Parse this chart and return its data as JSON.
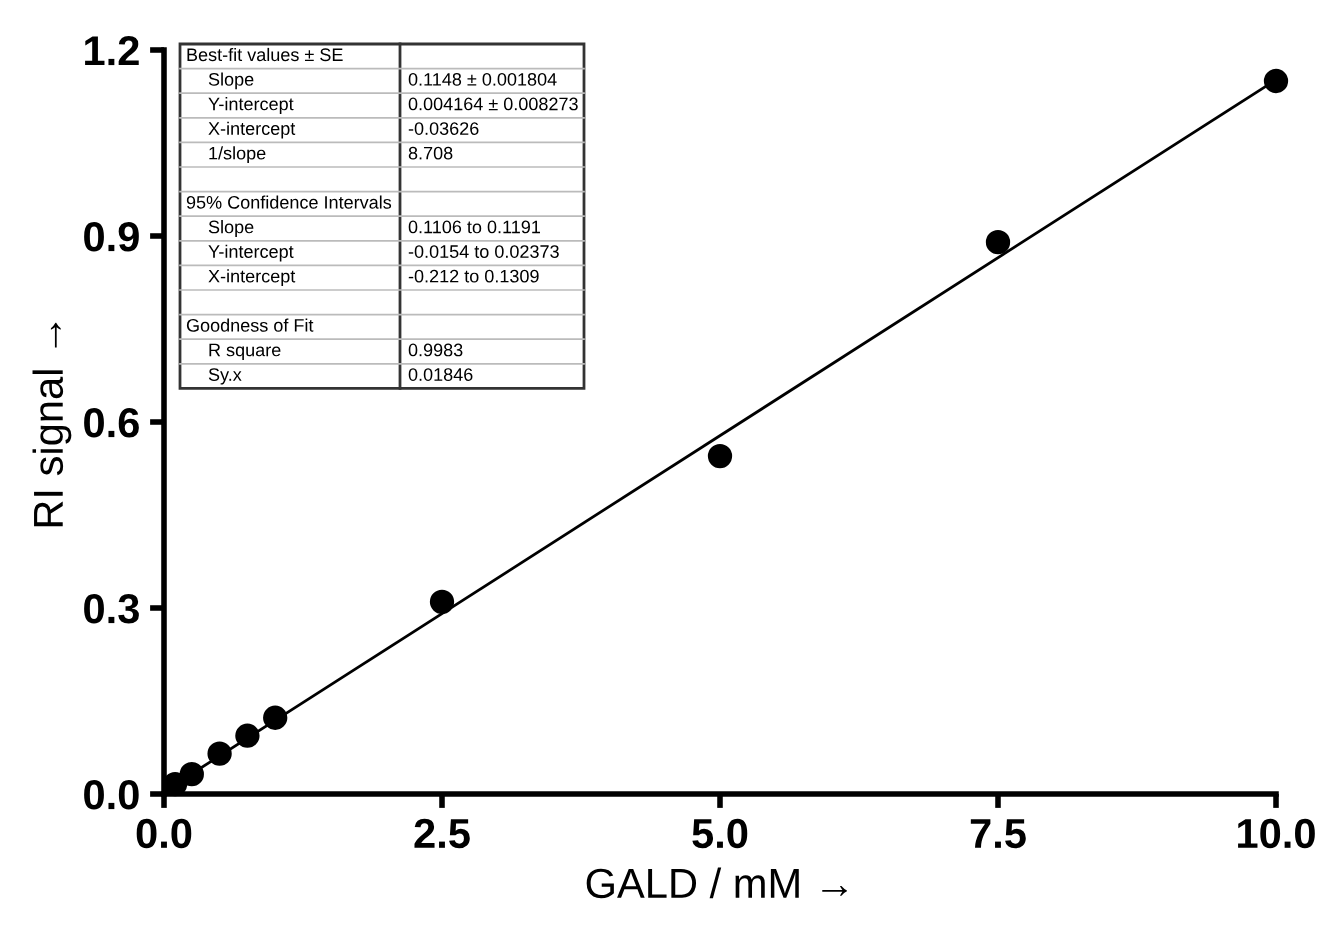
{
  "chart_data": {
    "type": "scatter",
    "xlabel": "GALD / mM →",
    "ylabel": "RI signal →",
    "series": [
      {
        "color": "#000000",
        "marker": "circle",
        "x": [
          0.1,
          0.25,
          0.5,
          0.75,
          1.0,
          2.5,
          5.0,
          7.5,
          10.0
        ],
        "values": [
          0.016,
          0.032,
          0.065,
          0.094,
          0.123,
          0.31,
          0.545,
          0.89,
          1.15
        ]
      },
      {
        "type": "line",
        "color": "#000000",
        "x": [
          0,
          10
        ],
        "values": [
          0.004,
          1.152
        ]
      }
    ],
    "xlim": [
      0,
      10
    ],
    "ylim": [
      0,
      1.2
    ],
    "xticks": [
      {
        "value": 0,
        "label": "0.0"
      },
      {
        "value": 2.5,
        "label": "2.5"
      },
      {
        "value": 5,
        "label": "5.0"
      },
      {
        "value": 7.5,
        "label": "7.5"
      },
      {
        "value": 10,
        "label": "10.0"
      }
    ],
    "yticks": [
      {
        "value": 0,
        "label": "0.0"
      },
      {
        "value": 0.3,
        "label": "0.3"
      },
      {
        "value": 0.6,
        "label": "0.6"
      },
      {
        "value": 0.9,
        "label": "0.9"
      },
      {
        "value": 1.2,
        "label": "1.2"
      }
    ],
    "grid": false,
    "annotations": [
      "Best-fit values ± SE",
      "Slope\t0.1148 ± 0.001804",
      "Y-intercept\t0.004164 ± 0.008273",
      "X-intercept\t-0.03626",
      "1/slope\t8.708",
      "95% Confidence Intervals",
      "Slope\t0.1106 to 0.1191",
      "Y-intercept\t-0.0154 to 0.02373",
      "X-intercept\t-0.212 to 0.1309",
      "Goodness of Fit",
      "R square\t0.9983",
      "Sy.x\t0.01846"
    ]
  }
}
